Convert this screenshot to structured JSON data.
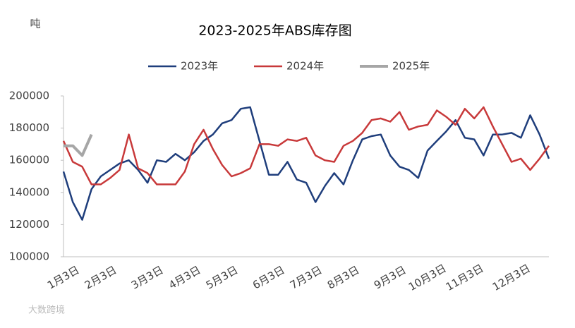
{
  "chart_data": {
    "type": "line",
    "title": "2023-2025年ABS库存图",
    "y_label": "吨",
    "watermark": "大数跨境",
    "categories": [
      "1月3日",
      null,
      null,
      null,
      "2月3日",
      null,
      null,
      null,
      null,
      "3月3日",
      null,
      null,
      null,
      "4月3日",
      null,
      null,
      null,
      "5月3日",
      null,
      null,
      null,
      null,
      "6月3日",
      null,
      null,
      null,
      "7月3日",
      null,
      null,
      null,
      "8月3日",
      null,
      null,
      null,
      null,
      "9月3日",
      null,
      null,
      null,
      "10月3日",
      null,
      null,
      null,
      "11月3日",
      null,
      null,
      null,
      null,
      "12月3日",
      null,
      null,
      null,
      null
    ],
    "series": [
      {
        "name": "2023年",
        "color": "#1f3e7c",
        "values": [
          153000,
          134000,
          123000,
          142000,
          150000,
          154000,
          158000,
          160000,
          154000,
          146000,
          160000,
          159000,
          164000,
          160000,
          165000,
          172000,
          176000,
          183000,
          185000,
          192000,
          193000,
          172000,
          151000,
          151000,
          159000,
          148000,
          146000,
          134000,
          144000,
          152000,
          145000,
          160000,
          173000,
          175000,
          176000,
          163000,
          156000,
          154000,
          149000,
          166000,
          172000,
          178000,
          185000,
          174000,
          173000,
          163000,
          176000,
          176000,
          177000,
          174000,
          188000,
          176000,
          161000
        ]
      },
      {
        "name": "2024年",
        "color": "#c8393a",
        "values": [
          172000,
          159000,
          156000,
          145000,
          145000,
          149000,
          154000,
          176000,
          155000,
          152000,
          145000,
          145000,
          145000,
          153000,
          170000,
          179000,
          167000,
          157000,
          150000,
          152000,
          155000,
          170000,
          170000,
          169000,
          173000,
          172000,
          174000,
          163000,
          160000,
          159000,
          169000,
          172000,
          177000,
          185000,
          186000,
          184000,
          190000,
          179000,
          181000,
          182000,
          191000,
          187000,
          182000,
          192000,
          186000,
          193000,
          181000,
          170000,
          159000,
          161000,
          154000,
          161000,
          169000
        ]
      },
      {
        "name": "2025年",
        "color": "#a6a6a6",
        "values": [
          169000,
          169000,
          163000,
          176000,
          null,
          null,
          null,
          null,
          null,
          null,
          null,
          null,
          null,
          null,
          null,
          null,
          null,
          null,
          null,
          null,
          null,
          null,
          null,
          null,
          null,
          null,
          null,
          null,
          null,
          null,
          null,
          null,
          null,
          null,
          null,
          null,
          null,
          null,
          null,
          null,
          null,
          null,
          null,
          null,
          null,
          null,
          null,
          null,
          null,
          null,
          null,
          null,
          null
        ]
      }
    ],
    "ylim": [
      100000,
      200000
    ],
    "yticks": [
      100000,
      120000,
      140000,
      160000,
      180000,
      200000
    ],
    "grid": false
  }
}
